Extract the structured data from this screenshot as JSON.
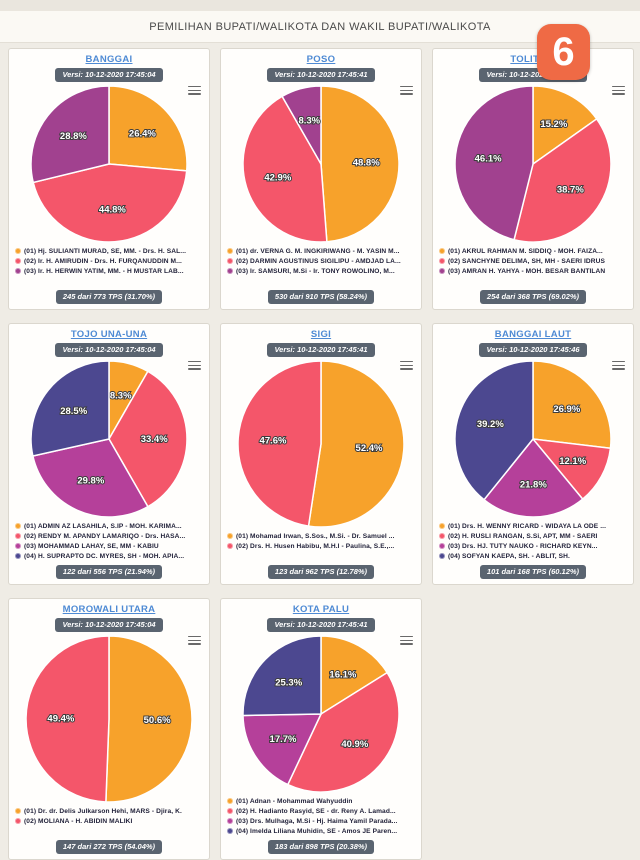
{
  "page": {
    "header_title": "PEMILIHAN BUPATI/WALIKOTA DAN WAKIL BUPATI/WALIKOTA",
    "logo_text": "6"
  },
  "colors": {
    "orange": "#F7A22B",
    "pink": "#F4566A",
    "purple": "#A1418F",
    "magenta": "#B5409A",
    "indigo": "#4C4890",
    "badge_bg": "#5A6470",
    "title_link": "#4E8AD4",
    "logo_bg": "#EF6A45"
  },
  "chart_data": [
    {
      "type": "pie",
      "title": "BANGGAI",
      "version": "Versi: 10-12-2020 17:45:04",
      "tps_badge": "245 dari 773 TPS (31.70%)",
      "slices": [
        {
          "value": 26.4,
          "color": "#F7A22B",
          "legend": "(01) Hj. SULIANTI MURAD, SE, MM. - Drs. H. SAL..."
        },
        {
          "value": 44.8,
          "color": "#F4566A",
          "legend": "(02) Ir. H. AMIRUDIN - Drs. H. FURQANUDDIN M..."
        },
        {
          "value": 28.8,
          "color": "#A1418F",
          "legend": "(03) Ir. H. HERWIN YATIM, MM. - H MUSTAR LAB..."
        }
      ]
    },
    {
      "type": "pie",
      "title": "POSO",
      "version": "Versi: 10-12-2020 17:45:41",
      "tps_badge": "530 dari 910 TPS (58.24%)",
      "slices": [
        {
          "value": 48.8,
          "color": "#F7A22B",
          "legend": "(01) dr. VERNA G. M. INGKIRIWANG - M. YASIN M..."
        },
        {
          "value": 42.9,
          "color": "#F4566A",
          "legend": "(02) DARMIN AGUSTINUS SIGILIPU - AMDJAD LA..."
        },
        {
          "value": 8.3,
          "color": "#A1418F",
          "legend": "(03) Ir. SAMSURI, M.Si - Ir. TONY ROWOLINO, M..."
        }
      ]
    },
    {
      "type": "pie",
      "title": "TOLITOLI",
      "version": "Versi: 10-12-2020 17:45:46",
      "tps_badge": "254 dari 368 TPS (69.02%)",
      "slices": [
        {
          "value": 15.2,
          "color": "#F7A22B",
          "legend": "(01) AKRUL RAHMAN M. SIDDIQ - MOH. FAIZA..."
        },
        {
          "value": 38.7,
          "color": "#F4566A",
          "legend": "(02) SANCHYNE DELIMA, SH, MH - SAERI IDRUS"
        },
        {
          "value": 46.1,
          "color": "#A1418F",
          "legend": "(03) AMRAN H. YAHYA - MOH. BESAR BANTILAN"
        }
      ]
    },
    {
      "type": "pie",
      "title": "TOJO UNA-UNA",
      "version": "Versi: 10-12-2020 17:45:04",
      "tps_badge": "122 dari 556 TPS (21.94%)",
      "slices": [
        {
          "value": 8.3,
          "color": "#F7A22B",
          "legend": "(01) ADMIN AZ LASAHILA, S.IP - MOH. KARIMA..."
        },
        {
          "value": 33.4,
          "color": "#F4566A",
          "legend": "(02) RENDY M. APANDY LAMARIQO - Drs. HASA..."
        },
        {
          "value": 29.8,
          "color": "#B5409A",
          "legend": "(03) MOHAMMAD LAHAY, SE, MM - KABIU"
        },
        {
          "value": 28.5,
          "color": "#4C4890",
          "legend": "(04) H. SUPRAPTO DC. MYRES, SH - MOH. APIA..."
        }
      ]
    },
    {
      "type": "pie",
      "title": "SIGI",
      "version": "Versi: 10-12-2020 17:45:41",
      "tps_badge": "123 dari 962 TPS (12.78%)",
      "slices": [
        {
          "value": 52.4,
          "color": "#F7A22B",
          "legend": "(01) Mohamad Irwan, S.Sos., M.Si. - Dr. Samuel ..."
        },
        {
          "value": 47.6,
          "color": "#F4566A",
          "legend": "(02) Drs. H. Husen Habibu, M.H.I - Paulina, S.E.,..."
        }
      ]
    },
    {
      "type": "pie",
      "title": "BANGGAI LAUT",
      "version": "Versi: 10-12-2020 17:45:46",
      "tps_badge": "101 dari 168 TPS (60.12%)",
      "slices": [
        {
          "value": 26.9,
          "color": "#F7A22B",
          "legend": "(01) Drs. H. WENNY RICARD - WIDAYA LA ODE ..."
        },
        {
          "value": 12.1,
          "color": "#F4566A",
          "legend": "(02) H. RUSLI RANGAN, S.Si, APT, MM - SAERI"
        },
        {
          "value": 21.8,
          "color": "#B5409A",
          "legend": "(03) Drs. HJ. TUTY NAUKO - RICHARD KEYN..."
        },
        {
          "value": 39.2,
          "color": "#4C4890",
          "legend": "(04) SOFYAN KAEPA, SH. - ABLIT, SH."
        }
      ]
    },
    {
      "type": "pie",
      "title": "MOROWALI UTARA",
      "version": "Versi: 10-12-2020 17:45:04",
      "tps_badge": "147 dari 272 TPS (54.04%)",
      "slices": [
        {
          "value": 50.6,
          "color": "#F7A22B",
          "legend": "(01) Dr. dr. Delis Julkarson Hehi, MARS - Djira, K."
        },
        {
          "value": 49.4,
          "color": "#F4566A",
          "legend": "(02) MOLIANA - H. ABIDIN MALIKI"
        }
      ]
    },
    {
      "type": "pie",
      "title": "KOTA PALU",
      "version": "Versi: 10-12-2020 17:45:41",
      "tps_badge": "183 dari 898 TPS (20.38%)",
      "slices": [
        {
          "value": 16.1,
          "color": "#F7A22B",
          "legend": "(01) Adnan - Mohammad Wahyuddin"
        },
        {
          "value": 40.9,
          "color": "#F4566A",
          "legend": "(02) H. Hadianto Rasyid, SE - dr. Reny A. Lamad..."
        },
        {
          "value": 17.7,
          "color": "#B5409A",
          "legend": "(03) Drs. Mulhaga, M.Si - Hj. Haima Yamil Parada..."
        },
        {
          "value": 25.3,
          "color": "#4C4890",
          "legend": "(04) Imelda Liliana Muhidin, SE - Amos JE Paren..."
        }
      ]
    }
  ]
}
